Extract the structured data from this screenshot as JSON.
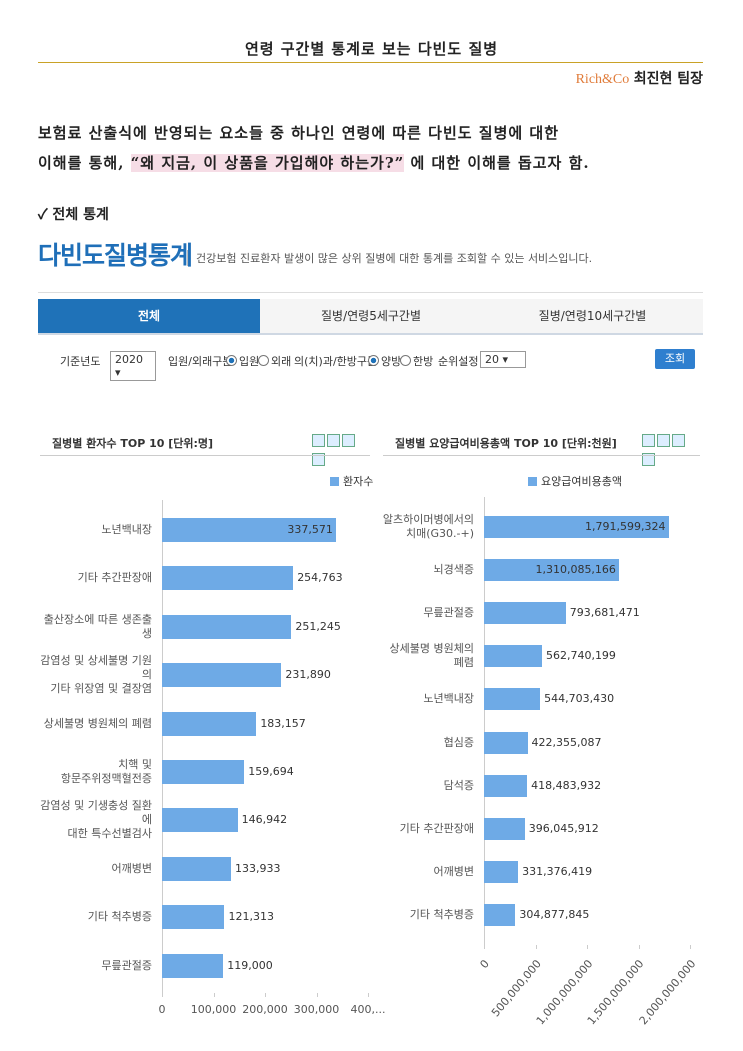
{
  "header": {
    "title": "연령 구간별 통계로 보는 다빈도 질병",
    "company": "Rich&Co",
    "author": "최진현 팀장"
  },
  "intro": {
    "line1": "보험료 산출식에 반영되는 요소들 중 하나인 연령에 따른 다빈도 질병에 대한",
    "line2_before": "이해를 통해, ",
    "highlight": "“왜 지금, 이 상품을 가입해야 하는가?”",
    "line2_after": " 에 대한 이해를 돕고자 함."
  },
  "section": "✓ 전체 통계",
  "service": {
    "logo": "다빈도질병통계",
    "description": "건강보험 진료환자 발생이 많은 상위 질병에 대한 통계를 조회할 수 있는 서비스입니다."
  },
  "tabs": [
    "전체",
    "질병/연령5세구간별",
    "질병/연령10세구간별"
  ],
  "filters": {
    "year_label": "기준년도",
    "year": "2020",
    "visit_label": "입원/외래구분",
    "visit_options": [
      "입원",
      "외래"
    ],
    "medicine_label": "의(치)과/한방구분",
    "medicine_options": [
      "양방",
      "한방"
    ],
    "rank_label": "순위설정",
    "rank": "20",
    "button": "조회"
  },
  "chart_data": [
    {
      "type": "bar",
      "orientation": "horizontal",
      "title": "질병별 환자수 TOP 10 [단위:명]",
      "categories": [
        "노년백내장",
        "기타 추간판장애",
        "출산장소에 따른 생존출생",
        "감염성 및 상세불명 기원의\n기타 위장염 및 결장염",
        "상세불명 병원체의 폐렴",
        "치핵 및\n항문주위정맥혈전증",
        "감염성 및 기생충성 질환에\n대한 특수선별검사",
        "어깨병변",
        "기타 척추병증",
        "무릎관절증"
      ],
      "series": [
        {
          "name": "환자수",
          "color": "#6eaae6",
          "values": [
            337571,
            254763,
            251245,
            231890,
            183157,
            159694,
            146942,
            133933,
            121313,
            119000
          ],
          "value_labels": [
            "337,571",
            "254,763",
            "251,245",
            "231,890",
            "183,157",
            "159,694",
            "146,942",
            "133,933",
            "121,313",
            "119,000"
          ]
        }
      ],
      "xlim": [
        0,
        400000
      ],
      "xticks": [
        0,
        {
          "value": 100000,
          "label": "100,000"
        },
        {
          "value": 200000,
          "label": "200,000"
        },
        {
          "value": 300000,
          "label": "300,000"
        },
        {
          "value": 400000,
          "label": "400,..."
        }
      ],
      "grid": false
    },
    {
      "type": "bar",
      "orientation": "horizontal",
      "title": "질병별 요양급여비용총액 TOP 10 [단위:천원]",
      "categories": [
        "알츠하이머병에서의\n치매(G30.-+)",
        "뇌경색증",
        "무릎관절증",
        "상세불명 병원체의 폐렴",
        "노년백내장",
        "협심증",
        "담석증",
        "기타 추간판장애",
        "어깨병변",
        "기타 척추병증"
      ],
      "series": [
        {
          "name": "요양급여비용총액",
          "color": "#6eaae6",
          "values": [
            1791599324,
            1310085166,
            793681471,
            562740199,
            544703430,
            422355087,
            418483932,
            396045912,
            331376419,
            304877845
          ],
          "value_labels": [
            "1,791,599,324",
            "1,310,085,166",
            "793,681,471",
            "562,740,199",
            "544,703,430",
            "422,355,087",
            "418,483,932",
            "396,045,912",
            "331,376,419",
            "304,877,845"
          ]
        }
      ],
      "xlim": [
        0,
        2000000000
      ],
      "xticks": [
        0,
        {
          "value": 500000000,
          "label": "500,000,000"
        },
        {
          "value": 1000000000,
          "label": "1,000,000,000"
        },
        {
          "value": 1500000000,
          "label": "1,500,000,000"
        },
        {
          "value": 2000000000,
          "label": "2,000,000,000"
        }
      ],
      "grid": false
    }
  ]
}
